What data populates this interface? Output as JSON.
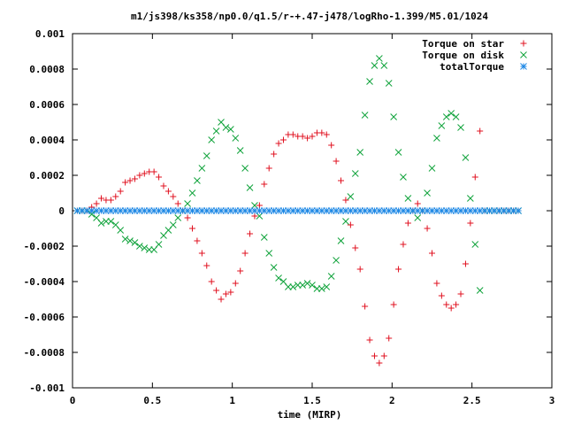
{
  "chart_data": {
    "type": "scatter",
    "title": "m1/js398/ks358/np0.0/q1.5/r-+.47-j478/logRho-1.399/M5.01/1024",
    "xlabel": "time (MIRP)",
    "ylabel": "",
    "xlim": [
      0,
      3
    ],
    "ylim": [
      -0.001,
      0.001
    ],
    "xticks": [
      "0",
      "0.5",
      "1",
      "1.5",
      "2",
      "2.5",
      "3"
    ],
    "yticks": [
      "0.001",
      "0.0008",
      "0.0006",
      "0.0004",
      "0.0002",
      "0",
      "-0.0002",
      "-0.0004",
      "-0.0006",
      "-0.0008",
      "-0.001"
    ],
    "legend_position": "top-right",
    "grid": false,
    "series": [
      {
        "name": "Torque on star",
        "marker": "plus",
        "color": "#e0101f",
        "x": [
          0.03,
          0.06,
          0.09,
          0.12,
          0.15,
          0.18,
          0.21,
          0.24,
          0.27,
          0.3,
          0.33,
          0.36,
          0.39,
          0.42,
          0.45,
          0.48,
          0.51,
          0.54,
          0.57,
          0.6,
          0.63,
          0.66,
          0.69,
          0.72,
          0.75,
          0.78,
          0.81,
          0.84,
          0.87,
          0.9,
          0.93,
          0.96,
          0.99,
          1.02,
          1.05,
          1.08,
          1.11,
          1.14,
          1.17,
          1.2,
          1.23,
          1.26,
          1.29,
          1.32,
          1.35,
          1.38,
          1.41,
          1.44,
          1.47,
          1.5,
          1.53,
          1.56,
          1.59,
          1.62,
          1.65,
          1.68,
          1.71,
          1.74,
          1.77,
          1.8,
          1.83,
          1.86,
          1.89,
          1.92,
          1.95,
          1.98,
          2.01,
          2.04,
          2.07,
          2.1,
          2.13,
          2.16,
          2.19,
          2.22,
          2.25,
          2.28,
          2.31,
          2.34,
          2.37,
          2.4,
          2.43,
          2.46,
          2.49,
          2.52,
          2.55,
          2.58,
          2.61,
          2.64,
          2.67,
          2.7,
          2.73,
          2.76,
          2.79
        ],
        "y": [
          0.0,
          0.0,
          0.0,
          2e-05,
          4e-05,
          7e-05,
          6e-05,
          6e-05,
          8e-05,
          0.00011,
          0.00016,
          0.00017,
          0.00018,
          0.0002,
          0.00021,
          0.00022,
          0.00022,
          0.00019,
          0.00014,
          0.00011,
          8e-05,
          4e-05,
          0.0,
          -4e-05,
          -0.0001,
          -0.00017,
          -0.00024,
          -0.00031,
          -0.0004,
          -0.00045,
          -0.0005,
          -0.00047,
          -0.00046,
          -0.00041,
          -0.00034,
          -0.00024,
          -0.00013,
          -3e-05,
          3e-05,
          0.00015,
          0.00024,
          0.00032,
          0.00038,
          0.0004,
          0.00043,
          0.00043,
          0.00042,
          0.00042,
          0.00041,
          0.00042,
          0.00044,
          0.00044,
          0.00043,
          0.00037,
          0.00028,
          0.00017,
          6e-05,
          -8e-05,
          -0.00021,
          -0.00033,
          -0.00054,
          -0.00073,
          -0.00082,
          -0.00086,
          -0.00082,
          -0.00072,
          -0.00053,
          -0.00033,
          -0.00019,
          -7e-05,
          0.0,
          4e-05,
          0.0,
          -0.0001,
          -0.00024,
          -0.00041,
          -0.00048,
          -0.00053,
          -0.00055,
          -0.00053,
          -0.00047,
          -0.0003,
          -7e-05,
          0.00019,
          0.00045,
          0.0,
          0.0,
          0.0,
          0.0,
          0.0,
          0.0,
          0.0,
          0.0
        ]
      },
      {
        "name": "Torque on disk",
        "marker": "cross",
        "color": "#11a33c",
        "x": [
          0.03,
          0.06,
          0.09,
          0.12,
          0.15,
          0.18,
          0.21,
          0.24,
          0.27,
          0.3,
          0.33,
          0.36,
          0.39,
          0.42,
          0.45,
          0.48,
          0.51,
          0.54,
          0.57,
          0.6,
          0.63,
          0.66,
          0.69,
          0.72,
          0.75,
          0.78,
          0.81,
          0.84,
          0.87,
          0.9,
          0.93,
          0.96,
          0.99,
          1.02,
          1.05,
          1.08,
          1.11,
          1.14,
          1.17,
          1.2,
          1.23,
          1.26,
          1.29,
          1.32,
          1.35,
          1.38,
          1.41,
          1.44,
          1.47,
          1.5,
          1.53,
          1.56,
          1.59,
          1.62,
          1.65,
          1.68,
          1.71,
          1.74,
          1.77,
          1.8,
          1.83,
          1.86,
          1.89,
          1.92,
          1.95,
          1.98,
          2.01,
          2.04,
          2.07,
          2.1,
          2.13,
          2.16,
          2.19,
          2.22,
          2.25,
          2.28,
          2.31,
          2.34,
          2.37,
          2.4,
          2.43,
          2.46,
          2.49,
          2.52,
          2.55,
          2.58,
          2.61,
          2.64,
          2.67,
          2.7,
          2.73,
          2.76,
          2.79
        ],
        "y": [
          0.0,
          0.0,
          0.0,
          -2e-05,
          -4e-05,
          -7e-05,
          -6e-05,
          -6e-05,
          -8e-05,
          -0.00011,
          -0.00016,
          -0.00017,
          -0.00018,
          -0.0002,
          -0.00021,
          -0.00022,
          -0.00022,
          -0.00019,
          -0.00014,
          -0.00011,
          -8e-05,
          -4e-05,
          0.0,
          4e-05,
          0.0001,
          0.00017,
          0.00024,
          0.00031,
          0.0004,
          0.00045,
          0.0005,
          0.00047,
          0.00046,
          0.00041,
          0.00034,
          0.00024,
          0.00013,
          3e-05,
          -3e-05,
          -0.00015,
          -0.00024,
          -0.00032,
          -0.00038,
          -0.0004,
          -0.00043,
          -0.00043,
          -0.00042,
          -0.00042,
          -0.00041,
          -0.00042,
          -0.00044,
          -0.00044,
          -0.00043,
          -0.00037,
          -0.00028,
          -0.00017,
          -6e-05,
          8e-05,
          0.00021,
          0.00033,
          0.00054,
          0.00073,
          0.00082,
          0.00086,
          0.00082,
          0.00072,
          0.00053,
          0.00033,
          0.00019,
          7e-05,
          0.0,
          -4e-05,
          0.0,
          0.0001,
          0.00024,
          0.00041,
          0.00048,
          0.00053,
          0.00055,
          0.00053,
          0.00047,
          0.0003,
          7e-05,
          -0.00019,
          -0.00045,
          0.0,
          0.0,
          0.0,
          0.0,
          0.0,
          0.0,
          0.0,
          0.0
        ]
      },
      {
        "name": "totalTorque",
        "marker": "star",
        "color": "#1e88e5",
        "x": [
          0.03,
          0.06,
          0.09,
          0.12,
          0.15,
          0.18,
          0.21,
          0.24,
          0.27,
          0.3,
          0.33,
          0.36,
          0.39,
          0.42,
          0.45,
          0.48,
          0.51,
          0.54,
          0.57,
          0.6,
          0.63,
          0.66,
          0.69,
          0.72,
          0.75,
          0.78,
          0.81,
          0.84,
          0.87,
          0.9,
          0.93,
          0.96,
          0.99,
          1.02,
          1.05,
          1.08,
          1.11,
          1.14,
          1.17,
          1.2,
          1.23,
          1.26,
          1.29,
          1.32,
          1.35,
          1.38,
          1.41,
          1.44,
          1.47,
          1.5,
          1.53,
          1.56,
          1.59,
          1.62,
          1.65,
          1.68,
          1.71,
          1.74,
          1.77,
          1.8,
          1.83,
          1.86,
          1.89,
          1.92,
          1.95,
          1.98,
          2.01,
          2.04,
          2.07,
          2.1,
          2.13,
          2.16,
          2.19,
          2.22,
          2.25,
          2.28,
          2.31,
          2.34,
          2.37,
          2.4,
          2.43,
          2.46,
          2.49,
          2.52,
          2.55,
          2.58,
          2.61,
          2.64,
          2.67,
          2.7,
          2.73,
          2.76,
          2.79
        ],
        "y": [
          0,
          0,
          0,
          0,
          0,
          0,
          0,
          0,
          0,
          0,
          0,
          0,
          0,
          0,
          0,
          0,
          0,
          0,
          0,
          0,
          0,
          0,
          0,
          0,
          0,
          0,
          0,
          0,
          0,
          0,
          0,
          0,
          0,
          0,
          0,
          0,
          0,
          0,
          0,
          0,
          0,
          0,
          0,
          0,
          0,
          0,
          0,
          0,
          0,
          0,
          0,
          0,
          0,
          0,
          0,
          0,
          0,
          0,
          0,
          0,
          0,
          0,
          0,
          0,
          0,
          0,
          0,
          0,
          0,
          0,
          0,
          0,
          0,
          0,
          0,
          0,
          0,
          0,
          0,
          0,
          0,
          0,
          0,
          0,
          0,
          0,
          0,
          0,
          0,
          0,
          0,
          0,
          0
        ]
      }
    ]
  }
}
